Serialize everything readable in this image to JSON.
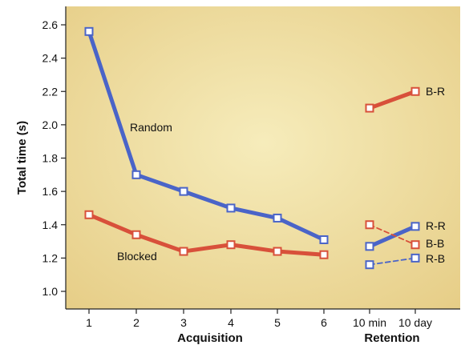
{
  "chart_data": {
    "type": "line",
    "title": "",
    "ylabel": "Total time (s)",
    "ylim": [
      0.9,
      2.7
    ],
    "yticks": [
      "1.0",
      "1.2",
      "1.4",
      "1.6",
      "1.8",
      "2.0",
      "2.2",
      "2.4",
      "2.6"
    ],
    "groups": [
      {
        "label": "Acquisition",
        "categories": [
          "1",
          "2",
          "3",
          "4",
          "5",
          "6"
        ]
      },
      {
        "label": "Retention",
        "categories": [
          "10 min",
          "10 day"
        ]
      }
    ],
    "colors": {
      "blue": "#4a64c8",
      "red": "#d8503a",
      "background_center": "#f5eab7",
      "background_edge": "#e8cf88"
    },
    "series": [
      {
        "label": "Random",
        "group": "Acquisition",
        "color": "blue",
        "dashed": false,
        "x": [
          "1",
          "2",
          "3",
          "4",
          "5",
          "6"
        ],
        "values": [
          2.56,
          1.7,
          1.6,
          1.5,
          1.44,
          1.31
        ]
      },
      {
        "label": "Blocked",
        "group": "Acquisition",
        "color": "red",
        "dashed": false,
        "x": [
          "1",
          "2",
          "3",
          "4",
          "5",
          "6"
        ],
        "values": [
          1.46,
          1.34,
          1.24,
          1.28,
          1.24,
          1.22
        ]
      },
      {
        "label": "B-R",
        "group": "Retention",
        "color": "red",
        "dashed": false,
        "x": [
          "10 min",
          "10 day"
        ],
        "values": [
          2.1,
          2.2
        ]
      },
      {
        "label": "R-R",
        "group": "Retention",
        "color": "blue",
        "dashed": false,
        "x": [
          "10 min",
          "10 day"
        ],
        "values": [
          1.27,
          1.39
        ]
      },
      {
        "label": "B-B",
        "group": "Retention",
        "color": "red",
        "dashed": true,
        "x": [
          "10 min",
          "10 day"
        ],
        "values": [
          1.4,
          1.28
        ]
      },
      {
        "label": "R-B",
        "group": "Retention",
        "color": "blue",
        "dashed": true,
        "x": [
          "10 min",
          "10 day"
        ],
        "values": [
          1.16,
          1.2
        ]
      }
    ]
  }
}
